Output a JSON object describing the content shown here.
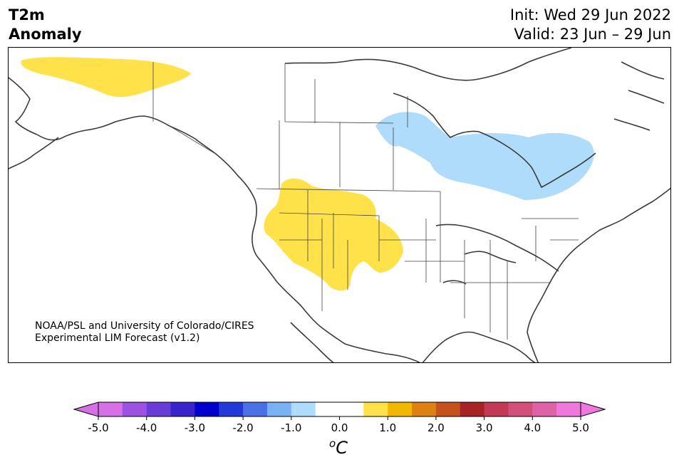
{
  "title": {
    "left_line1": "T2m",
    "left_line2": "Anomaly",
    "right_line1": "Init: Wed 29 Jun 2022",
    "right_line2": "Valid: 23 Jun – 29 Jun"
  },
  "credit": {
    "line1": "NOAA/PSL and University of Colorado/CIRES",
    "line2": "Experimental LIM Forecast (v1.2)"
  },
  "colorbar": {
    "unit_main": "C",
    "unit_sup": "o",
    "ticks": [
      "-5.0",
      "-4.0",
      "-3.0",
      "-2.0",
      "-1.0",
      "0.0",
      "1.0",
      "2.0",
      "3.0",
      "4.0",
      "5.0"
    ],
    "colors": [
      "#d670e6",
      "#9b52e0",
      "#6a3bd9",
      "#3a22cc",
      "#0000cc",
      "#2438d8",
      "#4a70e6",
      "#78b2f2",
      "#aedcfa",
      "#ffffff",
      "#ffffff",
      "#ffe24a",
      "#f2b800",
      "#dd8212",
      "#c4521a",
      "#a82424",
      "#c23a55",
      "#d0507a",
      "#de62a6",
      "#ee78dc"
    ],
    "under_color": "#d670e6",
    "over_color": "#ee78dc"
  },
  "anomaly_regions": [
    {
      "name": "alaska-warm",
      "sign": "positive",
      "color": "#ffe24a"
    },
    {
      "name": "western-us-warm",
      "sign": "positive",
      "color": "#ffe24a"
    },
    {
      "name": "hudson-bay-cool",
      "sign": "negative",
      "color": "#aedcfa"
    }
  ]
}
